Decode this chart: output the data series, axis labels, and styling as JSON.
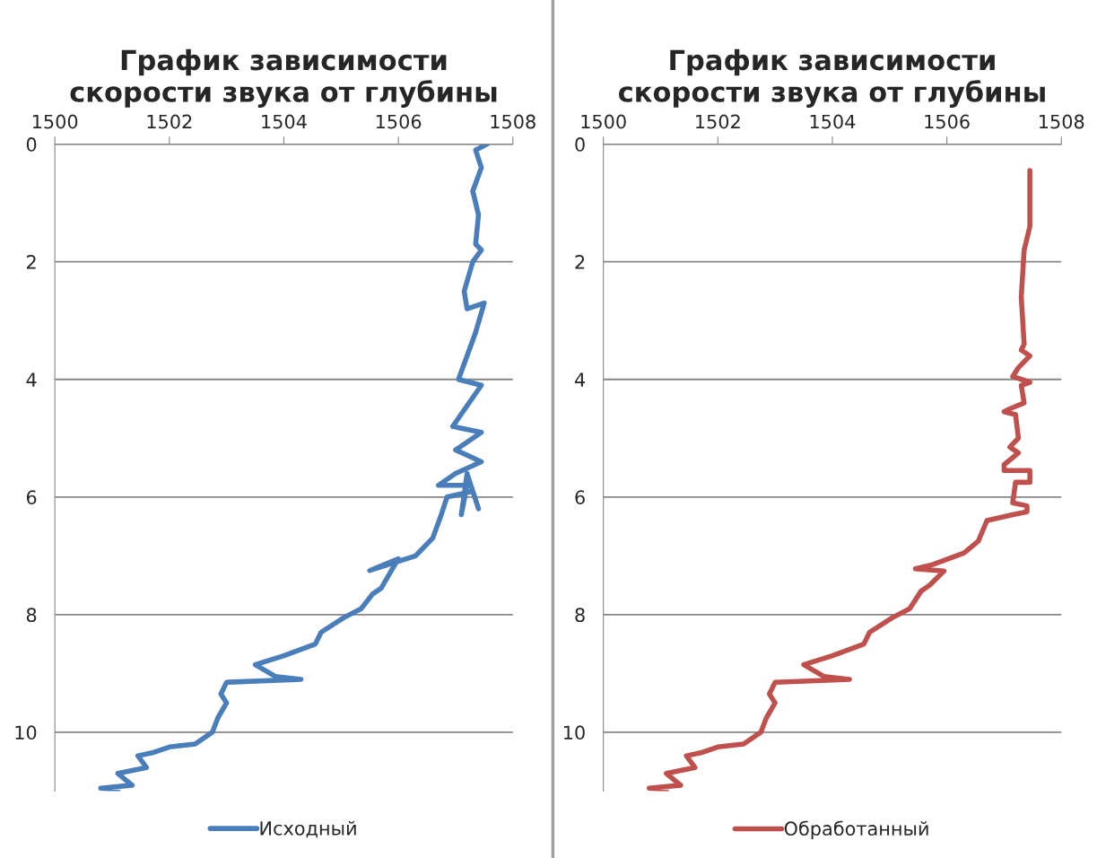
{
  "chart_data": [
    {
      "type": "line",
      "title": "График зависимости\nскорости звука от глубины",
      "xlim": [
        1500,
        1508
      ],
      "xticks": [
        1500,
        1502,
        1504,
        1506,
        1508
      ],
      "ylim": [
        11,
        0
      ],
      "yticks": [
        0,
        2,
        4,
        6,
        8,
        10
      ],
      "grid": "y",
      "legend": "bottom",
      "line_style": "solid",
      "series": [
        {
          "name": "Исходный",
          "color": "#4a7ebb",
          "x": [
            1507.55,
            1507.35,
            1507.45,
            1507.3,
            1507.4,
            1507.35,
            1507.45,
            1507.3,
            1507.15,
            1507.2,
            1507.5,
            1507.35,
            1507.2,
            1507.05,
            1507.45,
            1506.95,
            1507.45,
            1507.0,
            1507.45,
            1507.0,
            1506.7,
            1507.2,
            1507.1,
            1507.2,
            1507.4,
            1507.3,
            1506.85,
            1506.75,
            1506.6,
            1506.4,
            1506.3,
            1505.5,
            1506.0,
            1505.85,
            1505.7,
            1505.55,
            1505.35,
            1505.05,
            1504.65,
            1504.55,
            1504.0,
            1503.5,
            1503.85,
            1504.3,
            1503.0,
            1502.9,
            1503.0,
            1502.85,
            1502.75,
            1502.45,
            1502.0,
            1501.7,
            1501.45,
            1501.6,
            1501.1,
            1501.35,
            1500.8,
            1501.1
          ],
          "values": [
            0.0,
            0.1,
            0.4,
            0.8,
            1.2,
            1.7,
            1.8,
            2.0,
            2.5,
            2.8,
            2.7,
            3.2,
            3.6,
            4.0,
            4.1,
            4.8,
            4.9,
            5.2,
            5.4,
            5.6,
            5.8,
            5.8,
            6.3,
            5.6,
            6.2,
            5.9,
            6.0,
            6.3,
            6.7,
            6.9,
            7.0,
            7.25,
            7.05,
            7.3,
            7.55,
            7.65,
            7.9,
            8.05,
            8.3,
            8.5,
            8.7,
            8.85,
            9.05,
            9.1,
            9.15,
            9.35,
            9.5,
            9.75,
            10.0,
            10.2,
            10.25,
            10.35,
            10.4,
            10.6,
            10.7,
            10.9,
            10.95,
            10.98
          ]
        }
      ]
    },
    {
      "type": "line",
      "title": "График зависимости\nскорости звука от глубины",
      "xlim": [
        1500,
        1508
      ],
      "xticks": [
        1500,
        1502,
        1504,
        1506,
        1508
      ],
      "ylim": [
        11,
        0
      ],
      "yticks": [
        0,
        2,
        4,
        6,
        8,
        10
      ],
      "grid": "y",
      "legend": "bottom",
      "line_style": "solid",
      "series": [
        {
          "name": "Обработанный",
          "color": "#c0504d",
          "x": [
            1507.45,
            1507.45,
            1507.45,
            1507.35,
            1507.3,
            1507.35,
            1507.3,
            1507.45,
            1507.25,
            1507.15,
            1507.45,
            1507.3,
            1507.35,
            1507.1,
            1507.0,
            1507.2,
            1507.25,
            1507.1,
            1507.25,
            1507.0,
            1507.0,
            1507.45,
            1507.45,
            1507.2,
            1507.15,
            1507.4,
            1507.4,
            1507.15,
            1506.7,
            1506.55,
            1506.3,
            1505.75,
            1505.45,
            1505.95,
            1505.7,
            1505.55,
            1505.35,
            1505.05,
            1504.65,
            1504.55,
            1504.0,
            1503.5,
            1503.85,
            1504.3,
            1503.0,
            1502.9,
            1503.0,
            1502.85,
            1502.75,
            1502.45,
            1502.0,
            1501.7,
            1501.45,
            1501.6,
            1501.1,
            1501.35,
            1500.8,
            1501.1
          ],
          "values": [
            0.45,
            1.0,
            1.4,
            1.8,
            2.6,
            3.4,
            3.5,
            3.6,
            3.8,
            3.95,
            4.05,
            4.1,
            4.4,
            4.5,
            4.55,
            4.6,
            5.0,
            5.15,
            5.25,
            5.45,
            5.55,
            5.55,
            5.75,
            5.75,
            6.1,
            6.15,
            6.25,
            6.3,
            6.4,
            6.75,
            6.95,
            7.15,
            7.22,
            7.26,
            7.5,
            7.6,
            7.9,
            8.05,
            8.3,
            8.5,
            8.7,
            8.85,
            9.05,
            9.1,
            9.15,
            9.35,
            9.5,
            9.75,
            10.0,
            10.2,
            10.25,
            10.35,
            10.4,
            10.6,
            10.7,
            10.9,
            10.95,
            10.98
          ]
        }
      ]
    }
  ]
}
